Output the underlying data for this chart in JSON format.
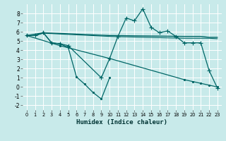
{
  "xlabel": "Humidex (Indice chaleur)",
  "bg_color": "#c8eaea",
  "grid_color": "#ffffff",
  "line_color": "#006666",
  "xlim": [
    -0.5,
    23.5
  ],
  "ylim": [
    -2.5,
    9.0
  ],
  "yticks": [
    -2,
    -1,
    0,
    1,
    2,
    3,
    4,
    5,
    6,
    7,
    8
  ],
  "xticks": [
    0,
    1,
    2,
    3,
    4,
    5,
    6,
    7,
    8,
    9,
    10,
    11,
    12,
    13,
    14,
    15,
    16,
    17,
    18,
    19,
    20,
    21,
    22,
    23
  ],
  "series": [
    {
      "x": [
        0,
        1,
        2,
        10,
        19,
        20,
        21,
        22,
        23
      ],
      "y": [
        5.6,
        5.6,
        5.9,
        5.6,
        5.5,
        5.5,
        5.5,
        5.4,
        5.4
      ],
      "marker": null,
      "linewidth": 1.0
    },
    {
      "x": [
        0,
        1,
        2,
        10,
        19,
        20,
        21,
        22,
        23
      ],
      "y": [
        5.6,
        5.6,
        5.85,
        5.5,
        5.3,
        5.3,
        5.3,
        5.3,
        5.25
      ],
      "marker": null,
      "linewidth": 0.8
    },
    {
      "x": [
        0,
        4,
        10,
        19,
        20,
        21,
        22,
        23
      ],
      "y": [
        5.6,
        4.5,
        3.1,
        0.8,
        0.6,
        0.4,
        0.2,
        0.0
      ],
      "marker": ".",
      "markersize": 3.0,
      "linewidth": 0.9
    },
    {
      "x": [
        0,
        1,
        2,
        3,
        4,
        5,
        9,
        10,
        11,
        12,
        13,
        14,
        15,
        16,
        17,
        18,
        19,
        20,
        21,
        22,
        23
      ],
      "y": [
        5.6,
        5.6,
        5.9,
        4.8,
        4.7,
        4.5,
        1.0,
        3.1,
        5.5,
        7.5,
        7.2,
        8.5,
        6.5,
        5.9,
        6.1,
        5.5,
        4.8,
        4.8,
        4.8,
        1.8,
        -0.1
      ],
      "marker": "+",
      "markersize": 4.0,
      "linewidth": 0.9
    },
    {
      "x": [
        0,
        2,
        3,
        4,
        5,
        6,
        7,
        8,
        9,
        10
      ],
      "y": [
        5.6,
        5.9,
        4.8,
        4.7,
        4.3,
        1.1,
        0.3,
        -0.6,
        -1.3,
        1.0
      ],
      "marker": ".",
      "markersize": 3.0,
      "linewidth": 0.9
    }
  ]
}
